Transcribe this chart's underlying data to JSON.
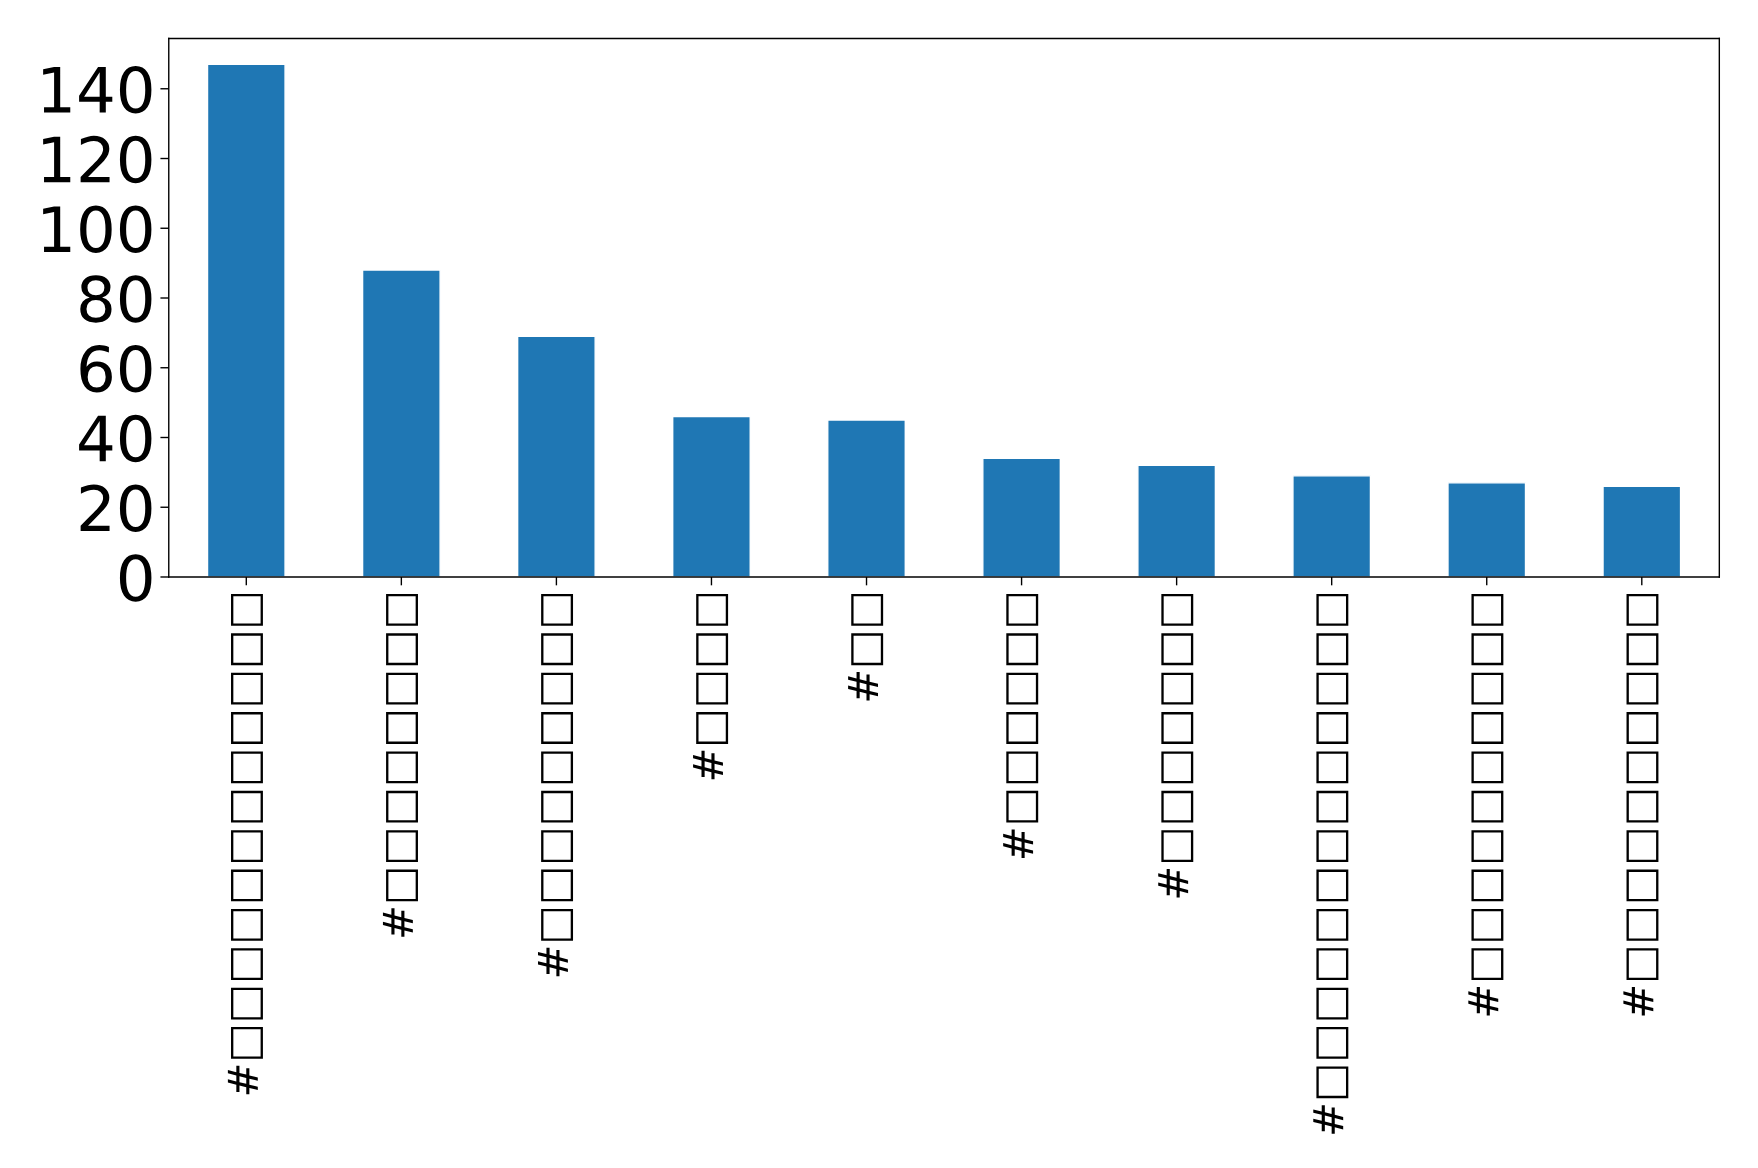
{
  "chart_data": {
    "type": "bar",
    "categories": [
      "#□□□□□□□□□□□□",
      "#□□□□□□□□",
      "#□□□□□□□□□",
      "#□□□□",
      "#□□",
      "#□□□□□□",
      "#□□□□□□□",
      "#□□□□□□□□□□□□□",
      "#□□□□□□□□□□",
      "#□□□□□□□□□□"
    ],
    "values": [
      147,
      88,
      69,
      46,
      45,
      34,
      32,
      29,
      27,
      26
    ],
    "color": "#1f77b4",
    "ylim": [
      0,
      154.4
    ],
    "yticks": [
      0,
      20,
      40,
      60,
      80,
      100,
      120,
      140
    ],
    "grid": false,
    "legend": false
  }
}
